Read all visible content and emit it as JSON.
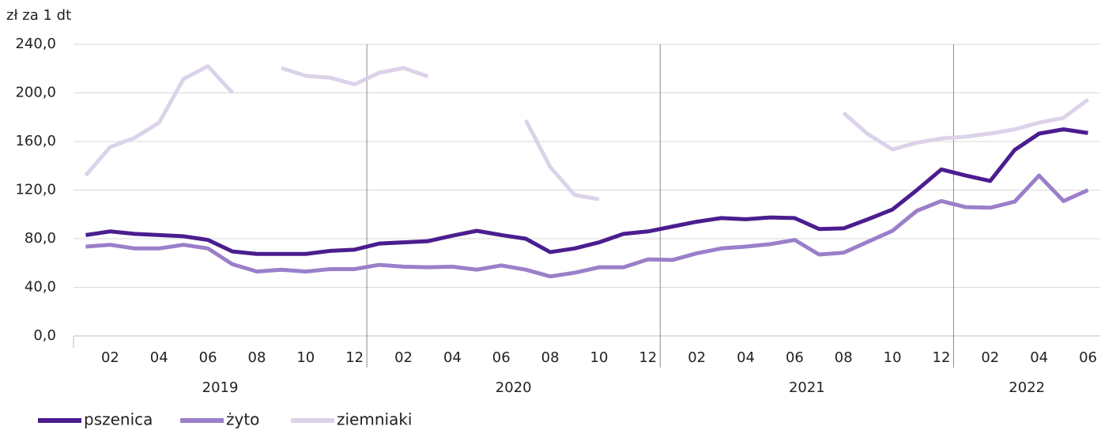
{
  "chart_data": {
    "type": "line",
    "y_axis_label": "zł za 1 dt",
    "categories": [
      null,
      "02",
      null,
      "04",
      null,
      "06",
      null,
      "08",
      null,
      "10",
      null,
      "12",
      null,
      "02",
      null,
      "04",
      null,
      "06",
      null,
      "08",
      null,
      "10",
      null,
      "12",
      null,
      "02",
      null,
      "04",
      null,
      "06",
      null,
      "08",
      null,
      "10",
      null,
      "12",
      null,
      "02",
      null,
      "04",
      null,
      "06"
    ],
    "years": [
      "2019",
      "2020",
      "2021",
      "2022"
    ],
    "series": [
      {
        "name": "pszenica",
        "color": "#4b1d8f",
        "values": [
          83,
          86,
          84,
          83,
          82,
          79,
          69.5,
          67.5,
          67.5,
          67.5,
          70,
          71,
          76,
          77,
          78,
          82.5,
          86.5,
          83,
          80,
          69,
          72,
          77,
          84,
          86,
          90,
          94,
          97,
          96,
          97.5,
          97,
          88,
          88.5,
          96,
          104,
          120,
          137,
          132,
          127.5,
          153,
          166.5,
          170,
          167
        ]
      },
      {
        "name": "żyto",
        "color": "#9a7fca",
        "values": [
          73.5,
          75,
          72,
          72,
          75,
          72,
          59,
          53,
          54.5,
          53,
          55,
          55,
          58.5,
          57,
          56.5,
          57,
          54.5,
          58,
          54.5,
          49,
          52,
          56.5,
          56.5,
          63,
          62.5,
          68,
          72,
          73.5,
          75.5,
          79,
          67,
          68.5,
          77.5,
          86.5,
          103,
          111,
          106,
          105.5,
          110.5,
          132,
          111,
          120
        ]
      },
      {
        "name": "ziemniaki",
        "color": "#dcd3ea",
        "values": [
          132,
          155.5,
          163,
          175.5,
          211.5,
          222,
          200,
          null,
          220.5,
          214,
          212.5,
          207,
          216.5,
          220.5,
          213.5,
          null,
          null,
          null,
          177.5,
          139,
          116,
          112.5,
          null,
          null,
          null,
          null,
          null,
          null,
          null,
          null,
          null,
          183.5,
          166,
          153.5,
          159,
          162.5,
          164,
          166.5,
          170,
          175.5,
          179.5,
          194.5
        ]
      }
    ],
    "ylim": [
      0,
      240
    ],
    "yticks": [
      {
        "value": 0,
        "label": "0,0"
      },
      {
        "value": 40,
        "label": "40,0"
      },
      {
        "value": 80,
        "label": "80,0"
      },
      {
        "value": 120,
        "label": "120,0"
      },
      {
        "value": 160,
        "label": "160,0"
      },
      {
        "value": 200,
        "label": "200,0"
      },
      {
        "value": 240,
        "label": "240,0"
      }
    ],
    "grid": true,
    "legend": "bottom"
  }
}
